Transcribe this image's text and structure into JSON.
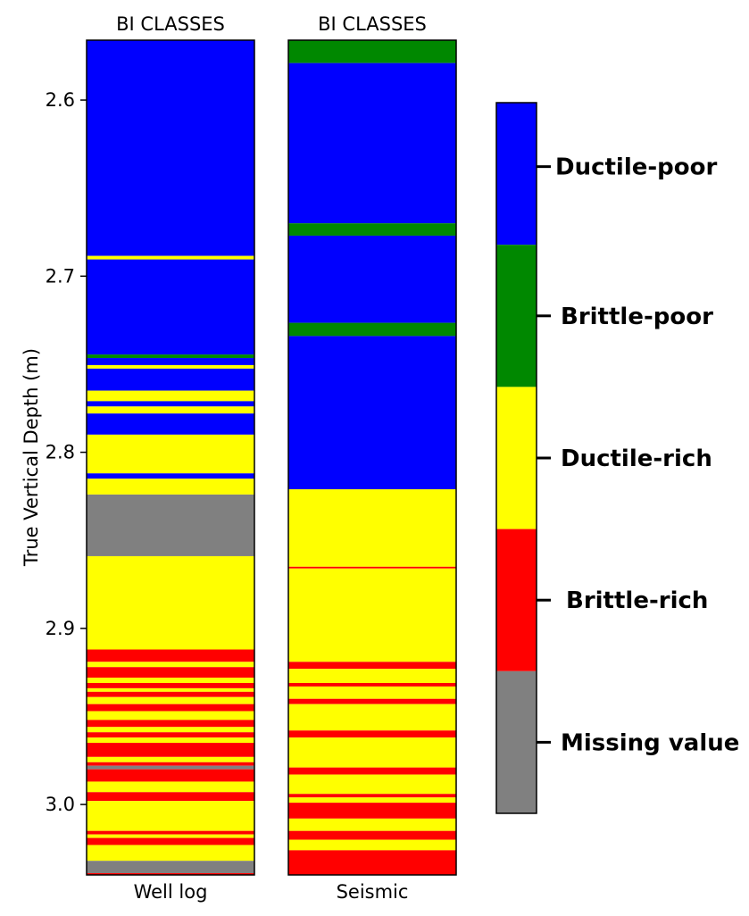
{
  "chart_data": {
    "type": "strip-log",
    "ylabel": "True Vertical Depth (m)",
    "ylim": [
      2.566,
      3.04
    ],
    "yticks": [
      {
        "value": 2.6,
        "label": "2.6"
      },
      {
        "value": 2.7,
        "label": "2.7"
      },
      {
        "value": 2.8,
        "label": "2.8"
      },
      {
        "value": 2.9,
        "label": "2.9"
      },
      {
        "value": 3.0,
        "label": "3.0"
      }
    ],
    "classes": [
      {
        "key": "ductile_poor",
        "label": "Ductile-poor",
        "color": "#0000ff"
      },
      {
        "key": "brittle_poor",
        "label": "Brittle-poor",
        "color": "#008800"
      },
      {
        "key": "ductile_rich",
        "label": "Ductile-rich",
        "color": "#ffff00"
      },
      {
        "key": "brittle_rich",
        "label": "Brittle-rich",
        "color": "#ff0000"
      },
      {
        "key": "missing",
        "label": "Missing value",
        "color": "#808080"
      }
    ],
    "tracks": [
      {
        "title": "BI CLASSES",
        "xlabel": "Well log",
        "intervals": [
          {
            "top": 2.566,
            "base": 2.6885,
            "cls": "ductile_poor"
          },
          {
            "top": 2.6885,
            "base": 2.6905,
            "cls": "ductile_rich"
          },
          {
            "top": 2.6905,
            "base": 2.7445,
            "cls": "ductile_poor"
          },
          {
            "top": 2.7445,
            "base": 2.7465,
            "cls": "brittle_poor"
          },
          {
            "top": 2.7465,
            "base": 2.7505,
            "cls": "ductile_poor"
          },
          {
            "top": 2.7505,
            "base": 2.7525,
            "cls": "ductile_rich"
          },
          {
            "top": 2.7525,
            "base": 2.765,
            "cls": "ductile_poor"
          },
          {
            "top": 2.765,
            "base": 2.771,
            "cls": "ductile_rich"
          },
          {
            "top": 2.771,
            "base": 2.774,
            "cls": "ductile_poor"
          },
          {
            "top": 2.774,
            "base": 2.778,
            "cls": "ductile_rich"
          },
          {
            "top": 2.778,
            "base": 2.79,
            "cls": "ductile_poor"
          },
          {
            "top": 2.79,
            "base": 2.812,
            "cls": "ductile_rich"
          },
          {
            "top": 2.812,
            "base": 2.815,
            "cls": "ductile_poor"
          },
          {
            "top": 2.815,
            "base": 2.824,
            "cls": "ductile_rich"
          },
          {
            "top": 2.824,
            "base": 2.859,
            "cls": "missing"
          },
          {
            "top": 2.859,
            "base": 2.912,
            "cls": "ductile_rich"
          },
          {
            "top": 2.912,
            "base": 2.919,
            "cls": "brittle_rich"
          },
          {
            "top": 2.919,
            "base": 2.922,
            "cls": "ductile_rich"
          },
          {
            "top": 2.922,
            "base": 2.928,
            "cls": "brittle_rich"
          },
          {
            "top": 2.928,
            "base": 2.931,
            "cls": "ductile_rich"
          },
          {
            "top": 2.931,
            "base": 2.934,
            "cls": "brittle_rich"
          },
          {
            "top": 2.934,
            "base": 2.936,
            "cls": "ductile_rich"
          },
          {
            "top": 2.936,
            "base": 2.939,
            "cls": "brittle_rich"
          },
          {
            "top": 2.939,
            "base": 2.943,
            "cls": "ductile_rich"
          },
          {
            "top": 2.943,
            "base": 2.947,
            "cls": "brittle_rich"
          },
          {
            "top": 2.947,
            "base": 2.952,
            "cls": "ductile_rich"
          },
          {
            "top": 2.952,
            "base": 2.956,
            "cls": "brittle_rich"
          },
          {
            "top": 2.956,
            "base": 2.959,
            "cls": "ductile_rich"
          },
          {
            "top": 2.959,
            "base": 2.962,
            "cls": "brittle_rich"
          },
          {
            "top": 2.962,
            "base": 2.965,
            "cls": "ductile_rich"
          },
          {
            "top": 2.965,
            "base": 2.973,
            "cls": "brittle_rich"
          },
          {
            "top": 2.973,
            "base": 2.976,
            "cls": "ductile_rich"
          },
          {
            "top": 2.976,
            "base": 2.978,
            "cls": "brittle_rich"
          },
          {
            "top": 2.978,
            "base": 2.98,
            "cls": "missing"
          },
          {
            "top": 2.98,
            "base": 2.987,
            "cls": "brittle_rich"
          },
          {
            "top": 2.987,
            "base": 2.993,
            "cls": "ductile_rich"
          },
          {
            "top": 2.993,
            "base": 2.998,
            "cls": "brittle_rich"
          },
          {
            "top": 2.998,
            "base": 3.015,
            "cls": "ductile_rich"
          },
          {
            "top": 3.015,
            "base": 3.017,
            "cls": "brittle_rich"
          },
          {
            "top": 3.017,
            "base": 3.019,
            "cls": "ductile_rich"
          },
          {
            "top": 3.019,
            "base": 3.023,
            "cls": "brittle_rich"
          },
          {
            "top": 3.023,
            "base": 3.032,
            "cls": "ductile_rich"
          },
          {
            "top": 3.032,
            "base": 3.039,
            "cls": "missing"
          },
          {
            "top": 3.039,
            "base": 3.04,
            "cls": "brittle_rich"
          }
        ]
      },
      {
        "title": "BI CLASSES",
        "xlabel": "Seismic",
        "intervals": [
          {
            "top": 2.566,
            "base": 2.579,
            "cls": "brittle_poor"
          },
          {
            "top": 2.579,
            "base": 2.67,
            "cls": "ductile_poor"
          },
          {
            "top": 2.67,
            "base": 2.677,
            "cls": "brittle_poor"
          },
          {
            "top": 2.677,
            "base": 2.7265,
            "cls": "ductile_poor"
          },
          {
            "top": 2.7265,
            "base": 2.734,
            "cls": "brittle_poor"
          },
          {
            "top": 2.734,
            "base": 2.821,
            "cls": "ductile_poor"
          },
          {
            "top": 2.821,
            "base": 2.865,
            "cls": "ductile_rich"
          },
          {
            "top": 2.865,
            "base": 2.866,
            "cls": "brittle_rich"
          },
          {
            "top": 2.866,
            "base": 2.919,
            "cls": "ductile_rich"
          },
          {
            "top": 2.919,
            "base": 2.923,
            "cls": "brittle_rich"
          },
          {
            "top": 2.923,
            "base": 2.931,
            "cls": "ductile_rich"
          },
          {
            "top": 2.931,
            "base": 2.933,
            "cls": "brittle_rich"
          },
          {
            "top": 2.933,
            "base": 2.94,
            "cls": "ductile_rich"
          },
          {
            "top": 2.94,
            "base": 2.943,
            "cls": "brittle_rich"
          },
          {
            "top": 2.943,
            "base": 2.958,
            "cls": "ductile_rich"
          },
          {
            "top": 2.958,
            "base": 2.962,
            "cls": "brittle_rich"
          },
          {
            "top": 2.962,
            "base": 2.979,
            "cls": "ductile_rich"
          },
          {
            "top": 2.979,
            "base": 2.983,
            "cls": "brittle_rich"
          },
          {
            "top": 2.983,
            "base": 2.994,
            "cls": "ductile_rich"
          },
          {
            "top": 2.994,
            "base": 2.996,
            "cls": "brittle_rich"
          },
          {
            "top": 2.996,
            "base": 2.999,
            "cls": "ductile_rich"
          },
          {
            "top": 2.999,
            "base": 3.008,
            "cls": "brittle_rich"
          },
          {
            "top": 3.008,
            "base": 3.015,
            "cls": "ductile_rich"
          },
          {
            "top": 3.015,
            "base": 3.02,
            "cls": "brittle_rich"
          },
          {
            "top": 3.02,
            "base": 3.026,
            "cls": "ductile_rich"
          },
          {
            "top": 3.026,
            "base": 3.04,
            "cls": "brittle_rich"
          }
        ]
      }
    ]
  }
}
